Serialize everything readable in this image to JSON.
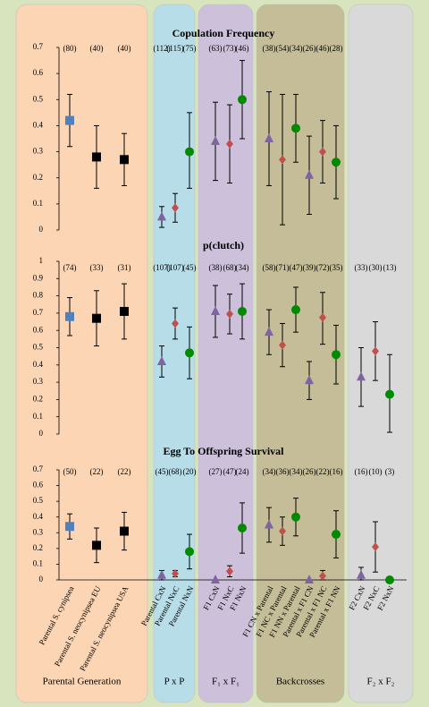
{
  "groups": [
    {
      "label": "Parental Generation",
      "color": "#fcd5b4",
      "categories": [
        "Parental S. cynipsea",
        "Parental S. neocynipsea EU",
        "Parental S. neocynipsea USA"
      ]
    },
    {
      "label": "P x P",
      "color": "#b7dee8",
      "categories": [
        "Parental CxN",
        "Parental NxC",
        "Parental NxN"
      ]
    },
    {
      "label": "F₁ x F₁",
      "color": "#ccc0da",
      "categories": [
        "F1 CxN",
        "F1 NxC",
        "F1 NxN"
      ]
    },
    {
      "label": "Backcrosses",
      "color": "#c4bd97",
      "categories": [
        "F1 CN x Parental",
        "F1 NC x Parental",
        "F1 NN x Parental",
        "Parental x F1 CN",
        "Parental x F1 NC",
        "Parental x F1 NN"
      ]
    },
    {
      "label": "F₂ x F₂",
      "color": "#d9d9d9",
      "categories": [
        "F2 CxN",
        "F2 NxC",
        "F2 NxN"
      ]
    }
  ],
  "markers": [
    {
      "shape": "square",
      "color": "#4f81bd"
    },
    {
      "shape": "square",
      "color": "#000000"
    },
    {
      "shape": "square",
      "color": "#000000"
    },
    {
      "shape": "triangle",
      "color": "#8064a2"
    },
    {
      "shape": "diamond",
      "color": "#c0504d"
    },
    {
      "shape": "circle",
      "color": "#008a00"
    },
    {
      "shape": "triangle",
      "color": "#8064a2"
    },
    {
      "shape": "diamond",
      "color": "#c0504d"
    },
    {
      "shape": "circle",
      "color": "#008a00"
    },
    {
      "shape": "triangle",
      "color": "#8064a2"
    },
    {
      "shape": "diamond",
      "color": "#c0504d"
    },
    {
      "shape": "circle",
      "color": "#008a00"
    },
    {
      "shape": "triangle",
      "color": "#8064a2"
    },
    {
      "shape": "diamond",
      "color": "#c0504d"
    },
    {
      "shape": "circle",
      "color": "#008a00"
    },
    {
      "shape": "triangle",
      "color": "#8064a2"
    },
    {
      "shape": "diamond",
      "color": "#c0504d"
    },
    {
      "shape": "circle",
      "color": "#008a00"
    },
    {
      "shape": "circle",
      "color": "#008a00"
    }
  ],
  "chart_data": [
    {
      "type": "errorbar",
      "title": "Copulation Frequency",
      "sample_sizes": [
        "(80)",
        "(40)",
        "(40)",
        "(112)",
        "(115)",
        "(75)",
        "(63)",
        "(73)",
        "(46)",
        "(38)",
        "(54)",
        "(34)",
        "(26)",
        "(46)",
        "(28)",
        null,
        null,
        null
      ],
      "values": [
        0.42,
        0.28,
        0.27,
        0.05,
        0.085,
        0.3,
        0.34,
        0.33,
        0.5,
        0.35,
        0.27,
        0.39,
        0.21,
        0.3,
        0.26,
        null,
        null,
        null
      ],
      "lower": [
        0.32,
        0.16,
        0.17,
        0.01,
        0.03,
        0.16,
        0.19,
        0.18,
        0.35,
        0.17,
        0.02,
        0.26,
        0.06,
        0.18,
        0.12,
        null,
        null,
        null
      ],
      "upper": [
        0.52,
        0.4,
        0.37,
        0.09,
        0.14,
        0.45,
        0.49,
        0.48,
        0.65,
        0.53,
        0.52,
        0.52,
        0.36,
        0.42,
        0.4,
        null,
        null,
        null
      ],
      "ylim": [
        0,
        0.7
      ],
      "yticks": [
        0,
        0.1,
        0.2,
        0.3,
        0.4,
        0.5,
        0.6,
        0.7
      ]
    },
    {
      "type": "errorbar",
      "title": "p(clutch)",
      "sample_sizes": [
        "(74)",
        "(33)",
        "(31)",
        "(107)",
        "(107)",
        "(45)",
        "(38)",
        "(68)",
        "(34)",
        "(58)",
        "(71)",
        "(47)",
        "(39)",
        "(72)",
        "(35)",
        "(33)",
        "(30)",
        "(13)"
      ],
      "values": [
        0.68,
        0.67,
        0.71,
        0.42,
        0.64,
        0.47,
        0.71,
        0.695,
        0.71,
        0.59,
        0.515,
        0.72,
        0.31,
        0.675,
        0.46,
        0.33,
        0.48,
        0.23
      ],
      "lower": [
        0.57,
        0.51,
        0.55,
        0.33,
        0.55,
        0.32,
        0.56,
        0.58,
        0.55,
        0.46,
        0.39,
        0.59,
        0.2,
        0.52,
        0.29,
        0.16,
        0.31,
        0.01
      ],
      "upper": [
        0.79,
        0.83,
        0.87,
        0.51,
        0.73,
        0.62,
        0.86,
        0.81,
        0.87,
        0.72,
        0.64,
        0.85,
        0.42,
        0.82,
        0.63,
        0.5,
        0.65,
        0.46
      ],
      "ylim": [
        0,
        1
      ],
      "yticks": [
        0,
        0.1,
        0.2,
        0.3,
        0.4,
        0.5,
        0.6,
        0.7,
        0.8,
        0.9,
        1
      ]
    },
    {
      "type": "errorbar",
      "title": "Egg To Offspring Survival",
      "baseline": true,
      "sample_sizes": [
        "(50)",
        "(22)",
        "(22)",
        "(45)",
        "(68)",
        "(20)",
        "(27)",
        "(47)",
        "(24)",
        "(34)",
        "(36)",
        "(34)",
        "(26)",
        "(22)",
        "(16)",
        "(16)",
        "(10)",
        "(3)"
      ],
      "values": [
        0.34,
        0.22,
        0.31,
        0.03,
        0.04,
        0.18,
        0,
        0.055,
        0.33,
        0.35,
        0.31,
        0.4,
        0,
        0.025,
        0.29,
        0.03,
        0.21,
        0
      ],
      "lower": [
        0.26,
        0.11,
        0.19,
        0,
        0.02,
        0.07,
        0,
        0.02,
        0.17,
        0.24,
        0.22,
        0.28,
        0,
        0,
        0.14,
        0,
        0.05,
        0
      ],
      "upper": [
        0.42,
        0.33,
        0.43,
        0.06,
        0.06,
        0.29,
        0,
        0.09,
        0.49,
        0.46,
        0.4,
        0.52,
        0,
        0.06,
        0.44,
        0.08,
        0.37,
        0
      ],
      "ylim": [
        0,
        0.7
      ],
      "yticks": [
        0,
        0.1,
        0.2,
        0.3,
        0.4,
        0.5,
        0.6,
        0.7
      ]
    }
  ]
}
